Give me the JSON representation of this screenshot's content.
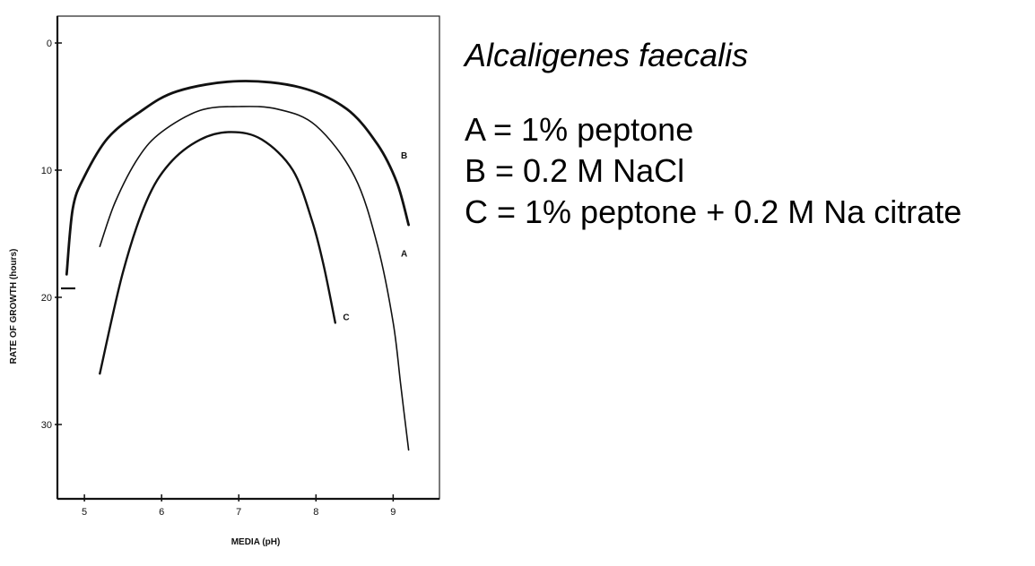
{
  "chart_data": {
    "type": "line",
    "title": "",
    "xlabel": "MEDIA (pH)",
    "ylabel": "RATE OF GROWTH (hours)",
    "xlim": [
      4.65,
      9.6
    ],
    "ylim": [
      0,
      36
    ],
    "y_inverted": true,
    "x_ticks": [
      5,
      6,
      7,
      8,
      9
    ],
    "y_ticks": [
      0,
      10,
      20,
      30
    ],
    "grid": false,
    "series": [
      {
        "name": "A",
        "label_at": [
          9.1,
          16.5
        ],
        "x": [
          5.2,
          5.4,
          5.7,
          6.0,
          6.5,
          7.0,
          7.5,
          8.0,
          8.5,
          8.8,
          9.0,
          9.1,
          9.2
        ],
        "y": [
          16,
          12.5,
          9,
          7,
          5.3,
          5.0,
          5.2,
          6.5,
          10.5,
          16,
          22,
          27,
          32
        ]
      },
      {
        "name": "B",
        "label_at": [
          9.1,
          8.8
        ],
        "x": [
          4.77,
          4.85,
          5.0,
          5.3,
          5.7,
          6.2,
          7.0,
          7.8,
          8.4,
          8.8,
          9.05,
          9.2
        ],
        "y": [
          18.2,
          13,
          10.5,
          7.5,
          5.5,
          3.8,
          3.0,
          3.5,
          5.2,
          8,
          11,
          14.3
        ]
      },
      {
        "name": "C",
        "label_at": [
          8.35,
          21.5
        ],
        "x": [
          5.2,
          5.5,
          5.8,
          6.1,
          6.5,
          6.9,
          7.3,
          7.7,
          7.95,
          8.1,
          8.25
        ],
        "y": [
          26,
          18,
          12.5,
          9.5,
          7.6,
          7.0,
          7.6,
          10,
          14,
          17.5,
          22
        ]
      }
    ]
  },
  "legend": {
    "title": "Alcaligenes faecalis",
    "items": [
      "A = 1% peptone",
      "B = 0.2 M NaCl",
      "C = 1% peptone + 0.2 M Na citrate"
    ]
  }
}
